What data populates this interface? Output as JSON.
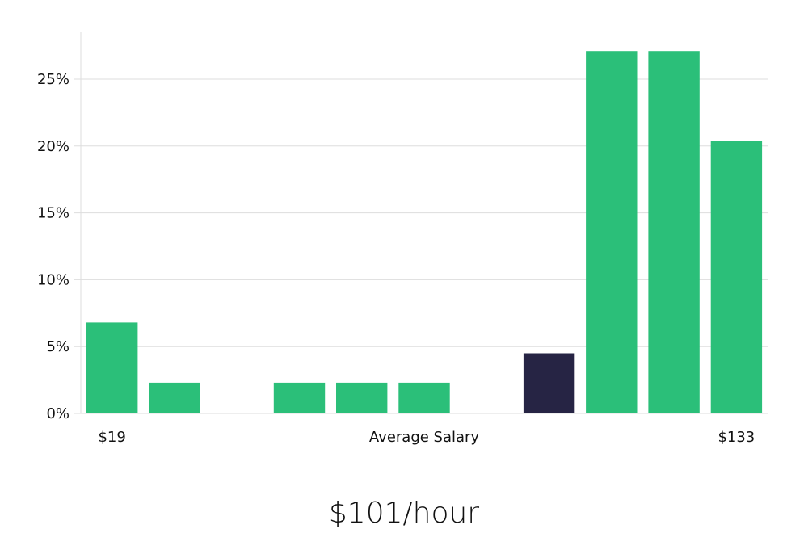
{
  "chart_data": {
    "type": "bar",
    "categories": [
      "1",
      "2",
      "3",
      "4",
      "5",
      "6",
      "7",
      "8",
      "9",
      "10",
      "11"
    ],
    "values": [
      6.8,
      2.3,
      0.0,
      2.3,
      2.3,
      2.3,
      0.0,
      4.5,
      27.1,
      27.1,
      20.4
    ],
    "highlight_index": 7,
    "ylim": [
      0,
      28.5
    ],
    "yticks": [
      0,
      5,
      10,
      15,
      20,
      25
    ],
    "ytick_labels": [
      "0%",
      "5%",
      "10%",
      "15%",
      "20%",
      "25%"
    ],
    "x_start_label": "$19",
    "xlabel": "Average Salary",
    "x_end_label": "$133",
    "grid": true,
    "colors": {
      "bar": "#2bbf79",
      "highlight": "#262444",
      "grid": "#dddddd",
      "axis": "#dddddd"
    }
  },
  "headline": "$101/hour"
}
